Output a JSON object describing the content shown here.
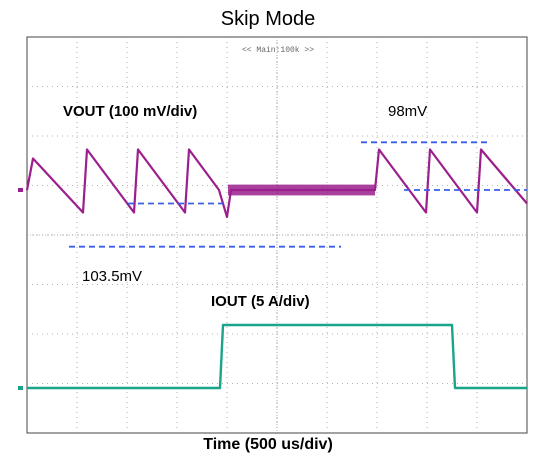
{
  "title": "Skip Mode",
  "header_text": "<< Main:100k >>",
  "x_axis_label": "Time (500 us/div)",
  "labels": {
    "vout": "VOUT (100 mV/div)",
    "iout": "IOUT (5 A/div)",
    "ripple_skip": "98mV",
    "ripple_pwm": "103.5mV"
  },
  "colors": {
    "vout": "#9b1f8c",
    "iout": "#1aa48a",
    "annotation": "#3a5ee8",
    "grid": "#9a9a9a"
  },
  "chart_data": {
    "type": "line",
    "title": "Skip Mode",
    "xlabel": "Time (500 us/div)",
    "x_unit": "us",
    "x_divisions": 10,
    "y_divisions": 8,
    "xlim": [
      0,
      5000
    ],
    "series": [
      {
        "name": "VOUT",
        "scale": "100 mV/div",
        "unit": "mV",
        "description_points": [
          [
            0,
            0
          ],
          [
            60,
            35
          ],
          [
            560,
            -25
          ],
          [
            600,
            45
          ],
          [
            1070,
            -25
          ],
          [
            1110,
            45
          ],
          [
            1580,
            -25
          ],
          [
            1620,
            45
          ],
          [
            1920,
            0
          ],
          [
            2000,
            -30
          ],
          [
            2040,
            0
          ],
          [
            3480,
            0
          ],
          [
            3520,
            45
          ],
          [
            3990,
            -25
          ],
          [
            4030,
            45
          ],
          [
            4500,
            -25
          ],
          [
            4540,
            45
          ],
          [
            5000,
            -15
          ]
        ]
      },
      {
        "name": "IOUT",
        "scale": "5 A/div",
        "unit": "A",
        "points": [
          [
            0,
            0
          ],
          [
            1930,
            0
          ],
          [
            1960,
            14
          ],
          [
            4250,
            14
          ],
          [
            4280,
            0
          ],
          [
            5000,
            0
          ]
        ]
      }
    ],
    "annotations": [
      {
        "text": "98mV",
        "series": "VOUT"
      },
      {
        "text": "103.5mV",
        "series": "VOUT"
      }
    ]
  }
}
